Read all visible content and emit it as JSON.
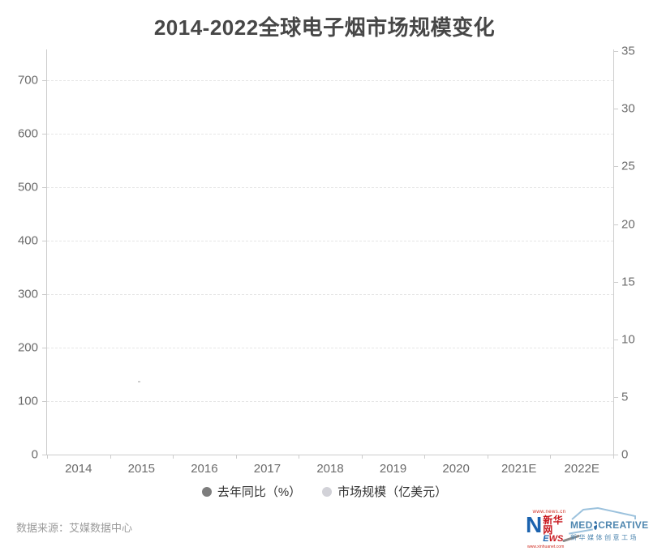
{
  "chart_data": {
    "type": "bar+line combo (plot area rendered empty / no data points visible)",
    "title": "2014-2022全球电子烟市场规模变化",
    "categories": [
      "2014",
      "2015",
      "2016",
      "2017",
      "2018",
      "2019",
      "2020",
      "2021E",
      "2022E"
    ],
    "series": [
      {
        "name": "去年同比（%）",
        "axis": "right",
        "color": "#7d7d7d",
        "values": []
      },
      {
        "name": "市场规模（亿美元）",
        "axis": "left",
        "color": "#d2d2d8",
        "values": []
      }
    ],
    "left_axis": {
      "ticks": [
        0,
        100,
        200,
        300,
        400,
        500,
        600,
        700
      ],
      "max": 757
    },
    "right_axis": {
      "ticks": [
        0,
        5,
        10,
        15,
        20,
        25,
        30,
        35
      ],
      "max": 35.15
    },
    "grid": "horizontal dashed lines at left-axis ticks",
    "legend_position": "bottom-center",
    "plot_empty": true
  },
  "footer": {
    "source": "数据来源：艾媒数据中心",
    "xinhua_logo": {
      "url_top": "www.news.cn",
      "n": "N",
      "cn": "新华网",
      "ews_e": "E",
      "ews_ws": "WS",
      "url_bottom": "www.xinhuanet.com"
    },
    "medcreative_logo": {
      "wordmark_left": "MED",
      "wordmark_right": "CREATIVE",
      "play_glyph": "▶",
      "subtitle": "新华媒体创意工场"
    }
  },
  "colors": {
    "title": "#474747",
    "axis_line": "#cccccc",
    "axis_label": "#6b6b6b",
    "gridline": "#e6e6e6",
    "legend_text": "#333333",
    "source_text": "#9b9b9b",
    "xinhua_blue": "#1b62ae",
    "xinhua_red": "#c8161d",
    "medcreative_blue": "#4f87b0"
  }
}
